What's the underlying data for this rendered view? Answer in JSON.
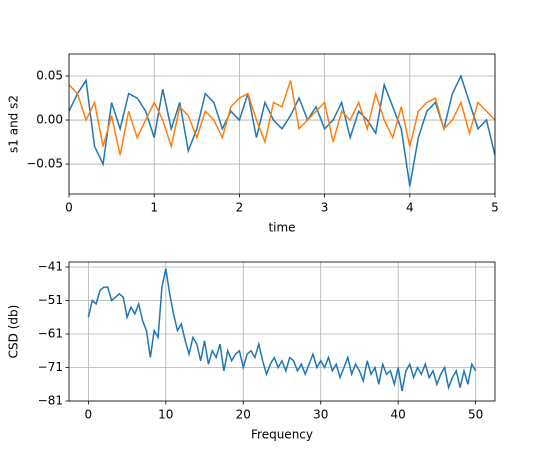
{
  "chart_data": [
    {
      "type": "line",
      "xlabel": "time",
      "ylabel": "s1 and s2",
      "x": [
        0,
        0.1,
        0.2,
        0.3,
        0.4,
        0.5,
        0.6,
        0.7,
        0.8,
        0.9,
        1,
        1.1,
        1.2,
        1.3,
        1.4,
        1.5,
        1.6,
        1.7,
        1.8,
        1.9,
        2,
        2.1,
        2.2,
        2.3,
        2.4,
        2.5,
        2.6,
        2.7,
        2.8,
        2.9,
        3,
        3.1,
        3.2,
        3.3,
        3.4,
        3.5,
        3.6,
        3.7,
        3.8,
        3.9,
        4,
        4.1,
        4.2,
        4.3,
        4.4,
        4.5,
        4.6,
        4.7,
        4.8,
        4.9,
        5
      ],
      "series": [
        {
          "color": "#1f77b4",
          "values": [
            0.01,
            0.03,
            0.045,
            -0.03,
            -0.05,
            0.02,
            -0.01,
            0.03,
            0.025,
            0.01,
            -0.02,
            0.035,
            -0.01,
            0.02,
            -0.035,
            -0.01,
            0.03,
            0.02,
            -0.01,
            0.01,
            0.0,
            0.03,
            -0.02,
            0.02,
            0.0,
            -0.01,
            0.005,
            0.025,
            0.0,
            0.015,
            -0.01,
            0.0,
            0.02,
            -0.02,
            0.01,
            0.0,
            -0.015,
            0.04,
            0.015,
            -0.01,
            -0.075,
            -0.02,
            0.01,
            0.02,
            -0.01,
            0.03,
            0.05,
            0.02,
            -0.01,
            0.0,
            -0.04
          ]
        },
        {
          "color": "#ff7f0e",
          "values": [
            0.04,
            0.03,
            0.0,
            0.02,
            -0.03,
            0.005,
            -0.04,
            0.01,
            -0.02,
            0.0,
            0.02,
            0.0,
            -0.03,
            0.015,
            0.005,
            -0.02,
            0.01,
            0.0,
            -0.02,
            0.015,
            0.025,
            0.03,
            0.0,
            -0.025,
            0.02,
            0.015,
            0.045,
            -0.01,
            0.0,
            0.01,
            0.02,
            -0.025,
            0.01,
            0.0,
            0.02,
            -0.01,
            0.03,
            0.0,
            -0.02,
            0.015,
            -0.03,
            0.01,
            0.02,
            0.025,
            -0.01,
            0.0,
            0.02,
            -0.015,
            0.02,
            0.01,
            0.0
          ]
        }
      ],
      "xlim": [
        0,
        5
      ],
      "xticks": [
        0,
        1,
        2,
        3,
        4,
        5
      ],
      "ylim": [
        -0.084,
        0.075
      ],
      "yticks": [
        {
          "value": -0.05,
          "label": "−0.05"
        },
        {
          "value": 0,
          "label": "0.00"
        },
        {
          "value": 0.05,
          "label": "0.05"
        }
      ],
      "grid": true
    },
    {
      "type": "line",
      "xlabel": "Frequency",
      "ylabel": "CSD (db)",
      "x": [
        0,
        0.5,
        1,
        1.5,
        2,
        2.5,
        3,
        3.5,
        4,
        4.5,
        5,
        5.5,
        6,
        6.5,
        7,
        7.5,
        8,
        8.5,
        9,
        9.5,
        10,
        10.5,
        11,
        11.5,
        12,
        12.5,
        13,
        13.5,
        14,
        14.5,
        15,
        15.5,
        16,
        16.5,
        17,
        17.5,
        18,
        18.5,
        19,
        19.5,
        20,
        20.5,
        21,
        21.5,
        22,
        22.5,
        23,
        23.5,
        24,
        24.5,
        25,
        25.5,
        26,
        26.5,
        27,
        27.5,
        28,
        28.5,
        29,
        29.5,
        30,
        30.5,
        31,
        31.5,
        32,
        32.5,
        33,
        33.5,
        34,
        34.5,
        35,
        35.5,
        36,
        36.5,
        37,
        37.5,
        38,
        38.5,
        39,
        39.5,
        40,
        40.5,
        41,
        41.5,
        42,
        42.5,
        43,
        43.5,
        44,
        44.5,
        45,
        45.5,
        46,
        46.5,
        47,
        47.5,
        48,
        48.5,
        49,
        49.5,
        50
      ],
      "series": [
        {
          "color": "#1f77b4",
          "values": [
            -56,
            -51,
            -52,
            -48,
            -47,
            -47,
            -51,
            -50,
            -49,
            -50,
            -56,
            -53,
            -55,
            -52,
            -57,
            -60,
            -68,
            -60,
            -62,
            -47,
            -41.5,
            -49,
            -55,
            -60,
            -58,
            -63,
            -67,
            -62,
            -64,
            -69,
            -63,
            -70,
            -66,
            -68,
            -64,
            -72,
            -66,
            -69,
            -67,
            -66,
            -71,
            -67,
            -66,
            -68,
            -64,
            -69,
            -73,
            -70,
            -68,
            -71,
            -69,
            -72,
            -68,
            -69,
            -72,
            -70,
            -73,
            -70,
            -67,
            -71,
            -69,
            -71,
            -68,
            -72,
            -70,
            -74,
            -71,
            -68,
            -73,
            -70,
            -72,
            -75,
            -69,
            -73,
            -71,
            -76,
            -70,
            -73,
            -72,
            -76,
            -71,
            -78,
            -72,
            -70,
            -74,
            -71,
            -73,
            -70,
            -74,
            -72,
            -76,
            -73,
            -71,
            -77,
            -74,
            -72,
            -77,
            -72,
            -76,
            -70,
            -72
          ]
        }
      ],
      "xlim": [
        -2.5,
        52.5
      ],
      "xticks": [
        0,
        10,
        20,
        30,
        40,
        50
      ],
      "ylim": [
        -81,
        -39.5
      ],
      "yticks": [
        {
          "value": -81,
          "label": "−81"
        },
        {
          "value": -71,
          "label": "−71"
        },
        {
          "value": -61,
          "label": "−61"
        },
        {
          "value": -51,
          "label": "−51"
        },
        {
          "value": -41,
          "label": "−41"
        }
      ],
      "grid": true
    }
  ]
}
